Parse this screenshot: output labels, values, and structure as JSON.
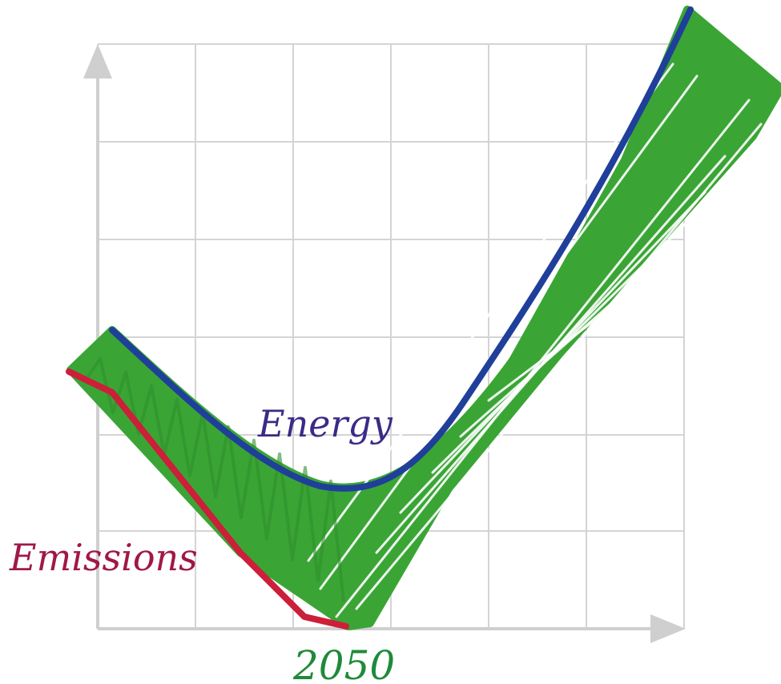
{
  "chart_data": {
    "type": "line",
    "title": "",
    "xlabel": "",
    "ylabel": "",
    "grid": true,
    "x_tick_label": "2050",
    "x_tick_value": 2050,
    "series": [
      {
        "name": "Energy",
        "color": "#1f3f9a"
      },
      {
        "name": "Emissions",
        "color": "#cc1f3a"
      }
    ],
    "annotations": {
      "energy_label": "Energy",
      "emissions_label": "Emissions"
    },
    "fill_color": "#3aa535",
    "grid_color": "#d4d4d4",
    "axis_color": "#cfcfcf"
  },
  "labels": {
    "energy": "Energy",
    "emissions": "Emissions",
    "year": "2050"
  },
  "colors": {
    "energy_label": "#3c2a86",
    "emissions_label": "#a01848",
    "year_label": "#1f8a3a"
  }
}
